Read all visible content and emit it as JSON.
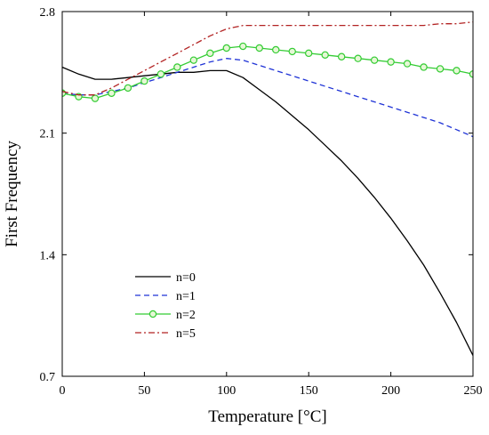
{
  "chart_data": {
    "type": "line",
    "xlabel": "Temperature [°C]",
    "ylabel": "First Frequency",
    "xlim": [
      0,
      250
    ],
    "ylim": [
      0.7,
      2.8
    ],
    "xticks": [
      0,
      50,
      100,
      150,
      200,
      250
    ],
    "yticks": [
      0.7,
      1.4,
      2.1,
      2.8
    ],
    "xtick_labels": [
      "0",
      "50",
      "100",
      "150",
      "200",
      "250"
    ],
    "ytick_labels": [
      "0.7",
      "1.4",
      "2.1",
      "2.8"
    ],
    "grid": false,
    "legend_position": "bottom-left",
    "series": [
      {
        "name": "n=0",
        "color": "#000000",
        "dash": "solid",
        "marker": "none",
        "x": [
          0,
          10,
          20,
          30,
          40,
          50,
          60,
          70,
          80,
          90,
          100,
          110,
          120,
          130,
          140,
          150,
          160,
          170,
          180,
          190,
          200,
          210,
          220,
          230,
          240,
          250
        ],
        "y": [
          2.48,
          2.44,
          2.41,
          2.41,
          2.42,
          2.43,
          2.44,
          2.45,
          2.45,
          2.46,
          2.46,
          2.42,
          2.35,
          2.28,
          2.2,
          2.12,
          2.03,
          1.94,
          1.84,
          1.73,
          1.61,
          1.48,
          1.34,
          1.18,
          1.01,
          0.82
        ]
      },
      {
        "name": "n=1",
        "color": "#1f33d6",
        "dash": "dashed",
        "marker": "none",
        "x": [
          0,
          10,
          20,
          30,
          40,
          50,
          60,
          70,
          80,
          90,
          100,
          110,
          120,
          130,
          140,
          150,
          160,
          170,
          180,
          190,
          200,
          210,
          220,
          230,
          240,
          250
        ],
        "y": [
          2.33,
          2.32,
          2.32,
          2.34,
          2.36,
          2.39,
          2.42,
          2.45,
          2.48,
          2.51,
          2.53,
          2.52,
          2.49,
          2.46,
          2.43,
          2.4,
          2.37,
          2.34,
          2.31,
          2.28,
          2.25,
          2.22,
          2.19,
          2.16,
          2.12,
          2.08
        ]
      },
      {
        "name": "n=2",
        "color": "#33cc33",
        "marker_fill": "#e6f7d6",
        "dash": "solid",
        "marker": "circle",
        "x": [
          0,
          10,
          20,
          30,
          40,
          50,
          60,
          70,
          80,
          90,
          100,
          110,
          120,
          130,
          140,
          150,
          160,
          170,
          180,
          190,
          200,
          210,
          220,
          230,
          240,
          250
        ],
        "y": [
          2.33,
          2.31,
          2.3,
          2.33,
          2.36,
          2.4,
          2.44,
          2.48,
          2.52,
          2.56,
          2.59,
          2.6,
          2.59,
          2.58,
          2.57,
          2.56,
          2.55,
          2.54,
          2.53,
          2.52,
          2.51,
          2.5,
          2.48,
          2.47,
          2.46,
          2.44
        ]
      },
      {
        "name": "n=5",
        "color": "#b22222",
        "dash": "dashdot",
        "marker": "none",
        "x": [
          0,
          10,
          20,
          30,
          40,
          50,
          60,
          70,
          80,
          90,
          100,
          110,
          120,
          130,
          140,
          150,
          160,
          170,
          180,
          190,
          200,
          210,
          220,
          230,
          240,
          250
        ],
        "y": [
          2.34,
          2.32,
          2.32,
          2.36,
          2.41,
          2.46,
          2.51,
          2.56,
          2.61,
          2.66,
          2.7,
          2.72,
          2.72,
          2.72,
          2.72,
          2.72,
          2.72,
          2.72,
          2.72,
          2.72,
          2.72,
          2.72,
          2.72,
          2.73,
          2.73,
          2.74
        ]
      }
    ]
  }
}
